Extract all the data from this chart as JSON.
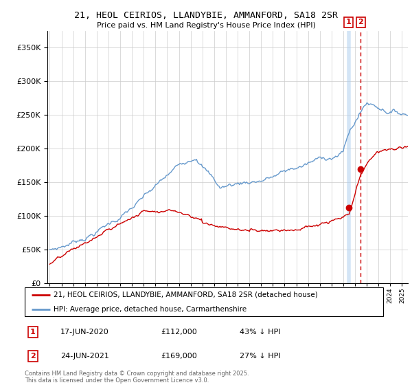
{
  "title": "21, HEOL CEIRIOS, LLANDYBIE, AMMANFORD, SA18 2SR",
  "subtitle": "Price paid vs. HM Land Registry's House Price Index (HPI)",
  "legend1": "21, HEOL CEIRIOS, LLANDYBIE, AMMANFORD, SA18 2SR (detached house)",
  "legend2": "HPI: Average price, detached house, Carmarthenshire",
  "annotation1_date": "17-JUN-2020",
  "annotation1_price": "£112,000",
  "annotation1_pct": "43% ↓ HPI",
  "annotation2_date": "24-JUN-2021",
  "annotation2_price": "£169,000",
  "annotation2_pct": "27% ↓ HPI",
  "footer": "Contains HM Land Registry data © Crown copyright and database right 2025.\nThis data is licensed under the Open Government Licence v3.0.",
  "red_color": "#cc0000",
  "blue_color": "#6699cc",
  "grid_color": "#cccccc",
  "background_color": "#ffffff",
  "ylim": [
    0,
    375000
  ],
  "yticks": [
    0,
    50000,
    100000,
    150000,
    200000,
    250000,
    300000,
    350000
  ],
  "xlim_start": 1994.8,
  "xlim_end": 2025.5,
  "vline1_x": 2020.46,
  "vline2_x": 2021.48,
  "ann1_y": 112000,
  "ann2_y": 169000
}
